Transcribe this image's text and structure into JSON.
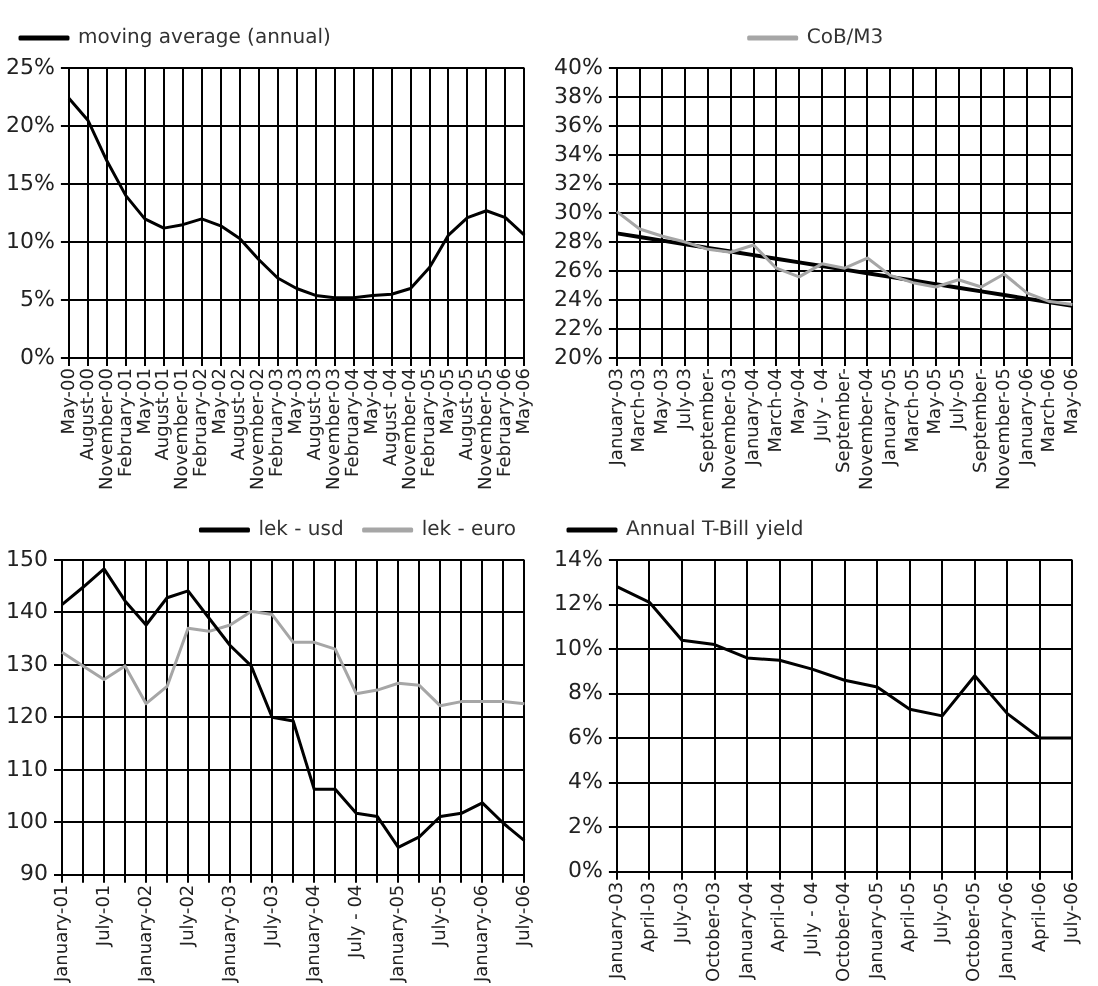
{
  "chart_data": [
    {
      "type": "line",
      "categories": [
        "May-00",
        "August-00",
        "November-00",
        "February-01",
        "May-01",
        "August-01",
        "November-01",
        "February-02",
        "May-02",
        "August-02",
        "November-02",
        "February-03",
        "May-03",
        "August-03",
        "November-03",
        "February-04",
        "May-04",
        "August -04",
        "November-04",
        "February-05",
        "May-05",
        "August-05",
        "November-05",
        "February-06",
        "May-06"
      ],
      "series": [
        {
          "name": "moving average (annual)",
          "color": "#000000",
          "values": [
            22.4,
            20.5,
            17.0,
            14.0,
            12.0,
            11.2,
            11.5,
            12.0,
            11.4,
            10.3,
            8.5,
            6.9,
            6.0,
            5.4,
            5.2,
            5.2,
            5.4,
            5.5,
            6.0,
            7.8,
            10.6,
            12.1,
            12.7,
            12.1,
            10.6
          ]
        }
      ],
      "ylim": [
        0,
        25
      ],
      "yticks": [
        {
          "value": 0,
          "label": "0%"
        },
        {
          "value": 5,
          "label": "5%"
        },
        {
          "value": 10,
          "label": "10%"
        },
        {
          "value": 15,
          "label": "15%"
        },
        {
          "value": 20,
          "label": "20%"
        },
        {
          "value": 25,
          "label": "25%"
        }
      ],
      "grid": true,
      "legend": "top left"
    },
    {
      "type": "line",
      "categories": [
        "January-03",
        "March-03",
        "May-03",
        "July-03",
        "September-",
        "November-03",
        "January-04",
        "March-04",
        "May-04",
        "July - 04",
        "September-",
        "November-04",
        "January-05",
        "March-05",
        "May-05",
        "July-05",
        "September-",
        "November-05",
        "January-06",
        "March-06",
        "May-06"
      ],
      "series": [
        {
          "name": "CoB/M3",
          "color": "#a6a6a6",
          "values": [
            30.1,
            28.9,
            28.4,
            28.0,
            27.5,
            27.3,
            27.8,
            26.2,
            25.6,
            26.5,
            26.2,
            26.9,
            25.7,
            25.2,
            24.9,
            25.4,
            24.9,
            25.8,
            24.5,
            23.9,
            23.7
          ]
        },
        {
          "color": "#000000",
          "values": [
            28.6,
            28.35,
            28.1,
            27.85,
            27.6,
            27.35,
            27.1,
            26.85,
            26.6,
            26.35,
            26.1,
            25.85,
            25.6,
            25.35,
            25.1,
            24.85,
            24.6,
            24.35,
            24.1,
            23.85,
            23.6
          ]
        }
      ],
      "ylim": [
        20,
        40
      ],
      "yticks": [
        {
          "value": 20,
          "label": "20%"
        },
        {
          "value": 22,
          "label": "22%"
        },
        {
          "value": 24,
          "label": "24%"
        },
        {
          "value": 26,
          "label": "26%"
        },
        {
          "value": 28,
          "label": "28%"
        },
        {
          "value": 30,
          "label": "30%"
        },
        {
          "value": 32,
          "label": "32%"
        },
        {
          "value": 34,
          "label": "34%"
        },
        {
          "value": 36,
          "label": "36%"
        },
        {
          "value": 38,
          "label": "38%"
        },
        {
          "value": 40,
          "label": "40%"
        }
      ],
      "grid": true,
      "legend": "top"
    },
    {
      "type": "line",
      "categories": [
        "January-01",
        null,
        "July-01",
        null,
        "January-02",
        null,
        "July-02",
        null,
        "January-03",
        null,
        "July-03",
        null,
        "January-04",
        null,
        "July - 04",
        null,
        "January-05",
        null,
        "July-05",
        null,
        "January-06",
        null,
        "July-06"
      ],
      "series": [
        {
          "name": "lek - usd",
          "color": "#000000",
          "values": [
            141.5,
            144.8,
            148.3,
            142.2,
            137.6,
            142.8,
            144.1,
            138.9,
            133.7,
            129.8,
            120.0,
            119.3,
            106.3,
            106.3,
            101.7,
            101.1,
            95.2,
            97.2,
            101.1,
            101.7,
            103.7,
            99.8,
            96.5
          ]
        },
        {
          "name": "lek - euro",
          "color": "#a6a6a6",
          "values": [
            132.4,
            129.8,
            127.2,
            129.8,
            122.6,
            125.9,
            137.0,
            136.4,
            137.6,
            140.2,
            139.6,
            134.3,
            134.3,
            133.0,
            124.5,
            125.2,
            126.5,
            126.1,
            122.2,
            123.0,
            123.0,
            123.0,
            122.6
          ]
        }
      ],
      "ylim": [
        90,
        150
      ],
      "yticks": [
        90,
        100,
        110,
        120,
        130,
        140,
        150
      ],
      "grid": true,
      "legend": "top right"
    },
    {
      "type": "line",
      "categories": [
        "January-03",
        "April-03",
        "July-03",
        "October-03",
        "January-04",
        "April-04",
        "July - 04",
        "October-04",
        "January-05",
        "April-05",
        "July-05",
        "October-05",
        "January-06",
        "April-06",
        "July-06"
      ],
      "series": [
        {
          "name": "Annual T-Bill yield",
          "color": "#000000",
          "values": [
            12.8,
            12.1,
            10.4,
            10.2,
            9.6,
            9.5,
            9.1,
            8.6,
            8.3,
            7.3,
            7.0,
            8.8,
            7.1,
            6.0,
            6.0
          ]
        }
      ],
      "ylim": [
        0,
        14
      ],
      "yticks": [
        {
          "value": 0,
          "label": "0%"
        },
        {
          "value": 2,
          "label": "2%"
        },
        {
          "value": 4,
          "label": "4%"
        },
        {
          "value": 6,
          "label": "6%"
        },
        {
          "value": 8,
          "label": "8%"
        },
        {
          "value": 10,
          "label": "10%"
        },
        {
          "value": 12,
          "label": "12%"
        },
        {
          "value": 14,
          "label": "14%"
        }
      ],
      "grid": true,
      "legend": "top left"
    }
  ]
}
